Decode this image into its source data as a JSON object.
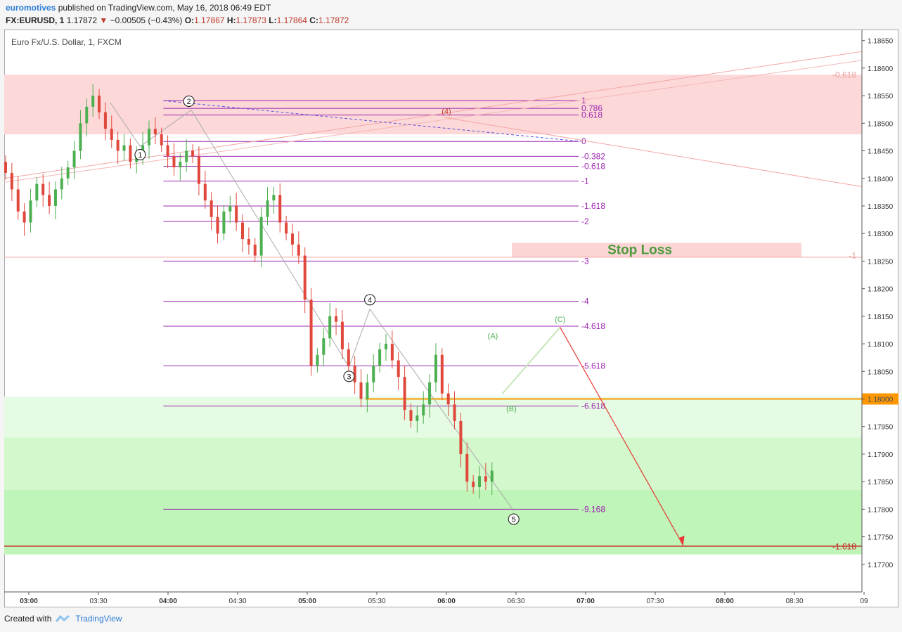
{
  "header": {
    "author": "euromotives",
    "published": "published on TradingView.com, May 16, 2018 06:49 EDT",
    "symbol": "FX:EURUSD, 1",
    "last": "1.17872",
    "arrow": "▼",
    "change": "−0.00505 (−0.43%)",
    "o_label": "O:",
    "o": "1.17867",
    "h_label": "H:",
    "h": "1.17873",
    "l_label": "L:",
    "l": "1.17864",
    "c_label": "C:",
    "c": "1.17872"
  },
  "footer": {
    "created_with": "Created with",
    "brand": "TradingView"
  },
  "colors": {
    "up": "#4caf50",
    "down": "#e0483c",
    "fib": "#9c27b0",
    "price_line": "#ff9800",
    "target": "#e53935"
  },
  "chart_data": {
    "type": "candlestick",
    "title": "Euro Fx/U.S. Dollar, 1, FXCM",
    "ylim": [
      1.1765,
      1.1867
    ],
    "y_ticks": [
      "1.18650",
      "1.18600",
      "1.18550",
      "1.18500",
      "1.18450",
      "1.18400",
      "1.18350",
      "1.18300",
      "1.18250",
      "1.18200",
      "1.18150",
      "1.18100",
      "1.18050",
      "1.18000",
      "1.17950",
      "1.17900",
      "1.17850",
      "1.17800",
      "1.17750",
      "1.17700"
    ],
    "x_ticks": [
      "03:00",
      "03:30",
      "04:00",
      "04:30",
      "05:00",
      "05:30",
      "06:00",
      "06:30",
      "07:00",
      "07:30",
      "08:00",
      "08:30",
      "09"
    ],
    "current_price": "1.18000",
    "series_close": [
      1.1841,
      1.1838,
      1.1834,
      1.1832,
      1.1836,
      1.1839,
      1.1837,
      1.1835,
      1.1838,
      1.184,
      1.1842,
      1.1845,
      1.185,
      1.1853,
      1.1855,
      1.1852,
      1.1849,
      1.1847,
      1.1845,
      1.1846,
      1.1843,
      1.1844,
      1.1846,
      1.1849,
      1.1848,
      1.1846,
      1.1844,
      1.1842,
      1.1843,
      1.1845,
      1.1844,
      1.1839,
      1.1836,
      1.1833,
      1.183,
      1.1834,
      1.1835,
      1.1832,
      1.1829,
      1.1828,
      1.1826,
      1.1833,
      1.1836,
      1.1837,
      1.1832,
      1.183,
      1.1828,
      1.1826,
      1.1818,
      1.1806,
      1.1808,
      1.1811,
      1.1815,
      1.1814,
      1.1809,
      1.1806,
      1.1803,
      1.18,
      1.1803,
      1.1806,
      1.1809,
      1.181,
      1.1807,
      1.1804,
      1.1798,
      1.1796,
      1.1797,
      1.1799,
      1.1803,
      1.1808,
      1.1801,
      1.1799,
      1.1796,
      1.179,
      1.1785,
      1.1784,
      1.1786,
      1.1785,
      1.1787
    ],
    "fib_levels": [
      {
        "label": "1",
        "value": 1.18541
      },
      {
        "label": "0.786",
        "value": 1.18527
      },
      {
        "label": "0.618",
        "value": 1.18515
      },
      {
        "label": "0",
        "value": 1.18467
      },
      {
        "label": "-0.382",
        "value": 1.1844
      },
      {
        "label": "-0.618",
        "value": 1.18422
      },
      {
        "label": "-1",
        "value": 1.18395
      },
      {
        "label": "-1.618",
        "value": 1.1835
      },
      {
        "label": "-2",
        "value": 1.18322
      },
      {
        "label": "-3",
        "value": 1.1825
      },
      {
        "label": "-4",
        "value": 1.18177
      },
      {
        "label": "-4.618",
        "value": 1.18132
      },
      {
        "label": "-5.618",
        "value": 1.1806
      },
      {
        "label": "-6.618",
        "value": 1.17987
      },
      {
        "label": "-9.168",
        "value": 1.178
      }
    ],
    "wave_labels": [
      {
        "label": "1",
        "x": "03:48",
        "y": 1.18443
      },
      {
        "label": "2",
        "x": "04:09",
        "y": 1.1854
      },
      {
        "label": "3",
        "x": "05:18",
        "y": 1.18041
      },
      {
        "label": "4",
        "x": "05:27",
        "y": 1.1818
      },
      {
        "label": "5",
        "x": "06:29",
        "y": 1.17782
      },
      {
        "label": "(4)",
        "x": "06:00",
        "y": 1.18522
      },
      {
        "label": "(A)",
        "x": "06:20",
        "y": 1.18115
      },
      {
        "label": "(B)",
        "x": "06:28",
        "y": 1.17983
      },
      {
        "label": "(C)",
        "x": "06:49",
        "y": 1.18145
      }
    ],
    "zones": {
      "stop_loss_label": "Stop Loss",
      "right_labels": [
        {
          "label": "-0.618",
          "value": 1.18588
        },
        {
          "label": "-1",
          "value": 1.1826
        },
        {
          "label": "-1.618",
          "value": 1.17732
        }
      ]
    }
  }
}
